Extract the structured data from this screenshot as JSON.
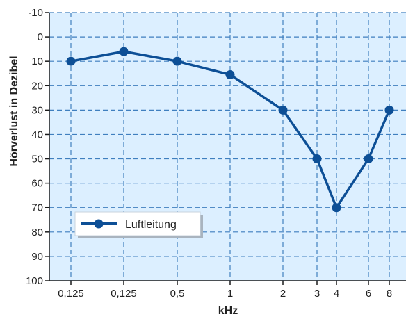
{
  "chart_data": {
    "type": "line",
    "xlabel": "kHz",
    "ylabel": "Hörverlust in Dezibel",
    "x": [
      "0,125",
      "0,125",
      "0,5",
      "1",
      "2",
      "3",
      "4",
      "6",
      "8"
    ],
    "ylim": [
      -10,
      100
    ],
    "y_ticks": [
      "-10",
      "0",
      "10",
      "20",
      "30",
      "40",
      "50",
      "60",
      "70",
      "80",
      "90",
      "100"
    ],
    "y_inverted": true,
    "grid": true,
    "legend_placement": "bottom-left",
    "series": [
      {
        "name": "Luftleitung",
        "values": [
          10,
          6,
          10,
          15.5,
          30,
          50,
          70,
          50,
          30
        ],
        "color": "#0d4f96"
      }
    ],
    "colors": {
      "plot_background": "#dcefff",
      "grid": "#3f7fbf",
      "axis": "#1a1a1a",
      "line": "#0d4f96"
    }
  }
}
